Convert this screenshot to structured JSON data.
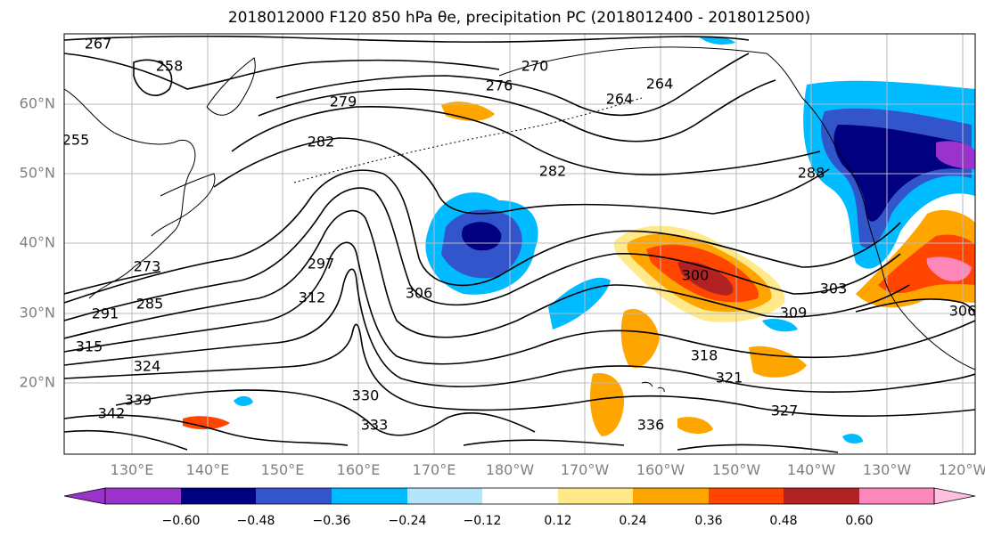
{
  "title": "2018012000 F120 850 hPa θe, precipitation PC (2018012400 - 2018012500)",
  "latitude_labels": [
    "60°N",
    "50°N",
    "40°N",
    "30°N",
    "20°N"
  ],
  "longitude_labels": [
    "130°E",
    "140°E",
    "150°E",
    "160°E",
    "170°E",
    "180°W",
    "170°W",
    "160°W",
    "150°W",
    "140°W",
    "130°W",
    "120°W"
  ],
  "contour_labels": [
    "267",
    "258",
    "255",
    "264",
    "264",
    "270",
    "276",
    "279",
    "282",
    "282",
    "288",
    "291",
    "297",
    "300",
    "303",
    "306",
    "306",
    "309",
    "312",
    "315",
    "318",
    "321",
    "324",
    "327",
    "330",
    "333",
    "336",
    "339",
    "342",
    "273",
    "285"
  ],
  "colorbar": {
    "ticks": [
      "−0.60",
      "−0.48",
      "−0.36",
      "−0.24",
      "−0.12",
      "0.12",
      "0.24",
      "0.36",
      "0.48",
      "0.60"
    ],
    "colors": [
      "#9933cc",
      "#000080",
      "#3355cc",
      "#00bbff",
      "#b3e5fc",
      "#ffffff",
      "#ffe98a",
      "#ffa500",
      "#ff4500",
      "#b22222",
      "#ff88bb",
      "#ffc0e0"
    ]
  },
  "colors": {
    "negative_strong": "#000080",
    "negative_mid": "#3355cc",
    "negative_light": "#00bbff",
    "positive_light": "#ffe98a",
    "positive_mid": "#ffa500",
    "positive_strong": "#ff4500",
    "positive_max": "#b22222"
  }
}
